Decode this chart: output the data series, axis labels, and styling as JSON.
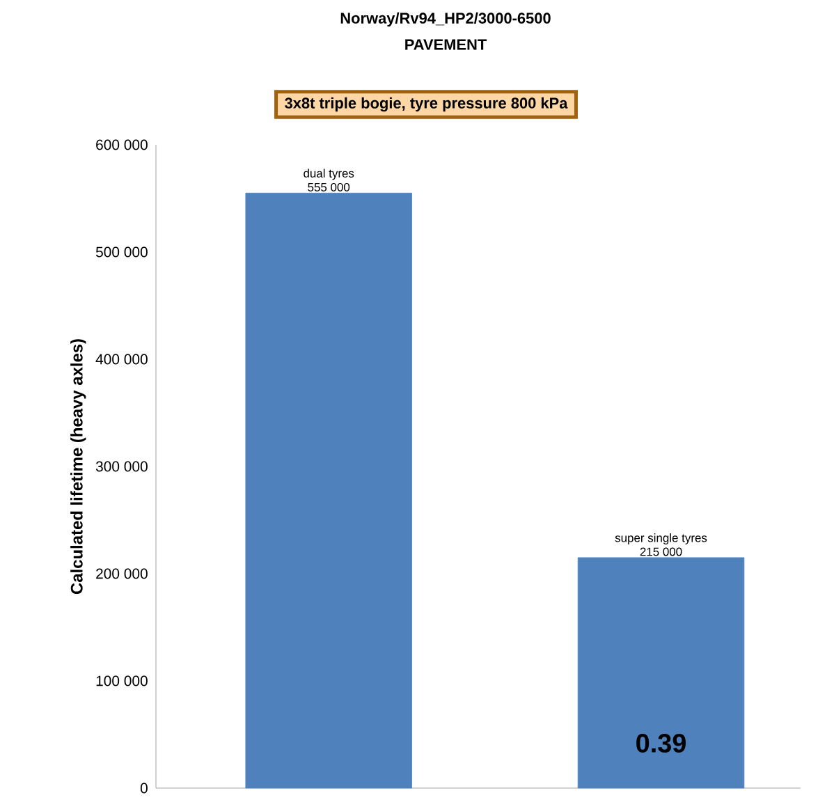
{
  "chart_data": {
    "type": "bar",
    "title": "Norway/Rv94_HP2/3000-6500",
    "subtitle": "PAVEMENT",
    "ylabel": "Calculated lifetime  (heavy axles)",
    "categories": [
      "dual tyres",
      "super single tyres"
    ],
    "values": [
      555000,
      215000
    ],
    "color": "#4f81bd",
    "value_labels": [
      "555 000",
      "215 000"
    ],
    "annotations": [
      "3x8t triple bogie, tyre pressure 800 kPa",
      "0.39"
    ],
    "ylim": [
      0,
      600000
    ],
    "yticks": [
      {
        "value": 0,
        "label": "0"
      },
      {
        "value": 100000,
        "label": "100 000"
      },
      {
        "value": 200000,
        "label": "200 000"
      },
      {
        "value": 300000,
        "label": "300 000"
      },
      {
        "value": 400000,
        "label": "400 000"
      },
      {
        "value": 500000,
        "label": "500 000"
      },
      {
        "value": 600000,
        "label": "600 000"
      }
    ],
    "tick_labels": "y",
    "grid": false
  }
}
